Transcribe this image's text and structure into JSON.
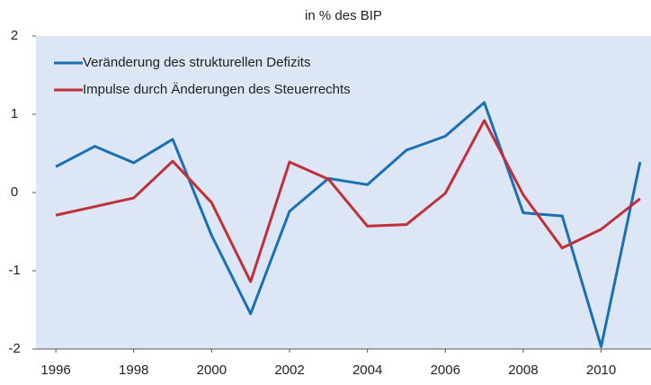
{
  "chart_data": {
    "type": "line",
    "title": "in % des BIP",
    "x": [
      1996,
      1997,
      1998,
      1999,
      2000,
      2001,
      2002,
      2003,
      2004,
      2005,
      2006,
      2007,
      2008,
      2009,
      2010,
      2011
    ],
    "series": [
      {
        "name": "Veränderung des strukturellen Defizits",
        "color": "#1a6fb5",
        "values": [
          0.33,
          0.59,
          0.38,
          0.68,
          -0.55,
          -1.55,
          -0.24,
          0.18,
          0.1,
          0.54,
          0.72,
          1.15,
          -0.26,
          -0.3,
          -1.97,
          0.39
        ]
      },
      {
        "name": "Impulse durch Änderungen des Steuerrechts",
        "color": "#c0303a",
        "values": [
          -0.29,
          -0.18,
          -0.07,
          0.4,
          -0.13,
          -1.14,
          0.39,
          0.17,
          -0.43,
          -0.41,
          -0.01,
          0.92,
          -0.03,
          -0.71,
          -0.47,
          -0.08
        ]
      }
    ],
    "xlim": [
      1995.49,
      2011.28
    ],
    "xticks": [
      1996,
      1998,
      2000,
      2002,
      2004,
      2006,
      2008,
      2010
    ],
    "ylim": [
      -2,
      2
    ],
    "yticks": [
      -2,
      -1,
      0,
      1,
      2
    ],
    "background": "#dde6f4",
    "legend": "top-left"
  }
}
